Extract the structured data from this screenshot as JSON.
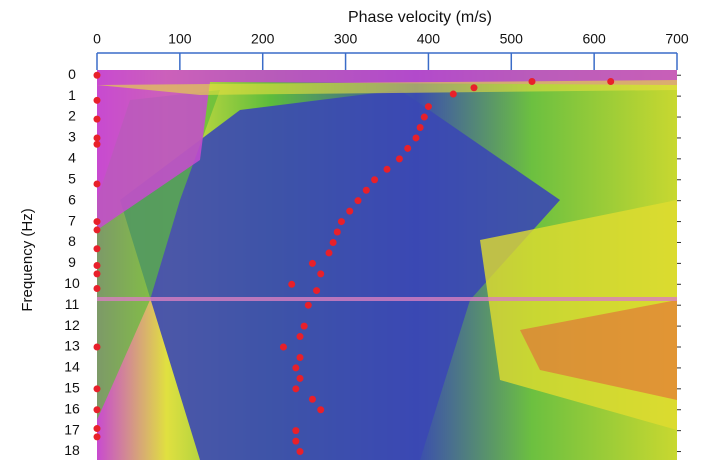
{
  "chart_data": {
    "type": "scatter",
    "x_label": "Phase velocity (m/s)",
    "y_label": "Frequency (Hz)",
    "x": [
      620,
      525,
      455,
      430,
      400,
      395,
      390,
      385,
      375,
      365,
      350,
      335,
      325,
      315,
      305,
      295,
      290,
      285,
      280,
      260,
      270,
      235,
      265,
      255,
      250,
      245,
      225,
      245,
      240,
      245,
      240,
      260,
      270,
      240,
      240,
      245,
      0,
      0,
      0,
      0,
      0,
      0,
      0,
      0,
      0,
      0,
      0,
      0,
      0,
      0,
      0,
      0,
      0
    ],
    "values": [
      0.3,
      0.3,
      0.6,
      0.9,
      1.5,
      2,
      2.5,
      3,
      3.5,
      4,
      4.5,
      5,
      5.5,
      6,
      6.5,
      7,
      7.5,
      8,
      8.5,
      9,
      9.5,
      10,
      10.3,
      11,
      12,
      12.5,
      13,
      13.5,
      14,
      14.5,
      15,
      15.5,
      16,
      17,
      17.5,
      18,
      0,
      1.2,
      2.1,
      3,
      3.3,
      5.2,
      7,
      7.4,
      8.3,
      9.1,
      9.5,
      10.2,
      13,
      15,
      16,
      16.9,
      17.3
    ],
    "color": "#e8202a",
    "xlim": [
      0,
      700
    ],
    "xticks": [
      0,
      100,
      200,
      300,
      400,
      500,
      600,
      700
    ],
    "ylim": [
      -0.25,
      18.5
    ],
    "yticks": [
      0,
      1,
      2,
      3,
      4,
      5,
      6,
      7,
      8,
      9,
      10,
      11,
      12,
      13,
      14,
      15,
      16,
      17,
      18
    ],
    "y_inverted": true,
    "x_axis_position": "top"
  }
}
